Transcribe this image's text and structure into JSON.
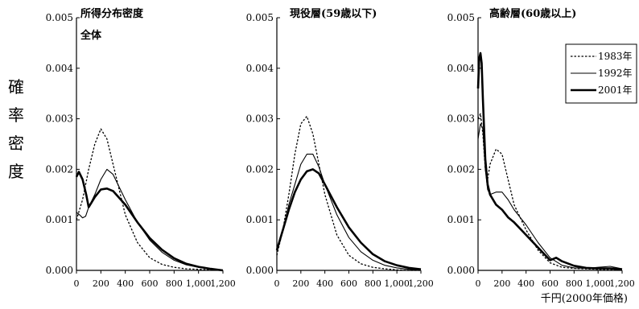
{
  "figure": {
    "y_label": "確率密度",
    "x_unit_label": "千円(2000年価格)"
  },
  "chart_data": [
    {
      "type": "line",
      "title": "所得分布密度",
      "subtitle": "全体",
      "xlim": [
        0,
        1200
      ],
      "ylim": [
        0,
        0.005
      ],
      "x_ticks": [
        "0",
        "200",
        "400",
        "600",
        "800",
        "1,000",
        "1,200"
      ],
      "y_ticks": [
        "0.000",
        "0.001",
        "0.002",
        "0.003",
        "0.004",
        "0.005"
      ],
      "grid": false,
      "series": [
        {
          "name": "1983年",
          "style": "dotted",
          "x": [
            0,
            50,
            100,
            150,
            200,
            250,
            300,
            400,
            500,
            600,
            700,
            800,
            900,
            1000,
            1100,
            1200
          ],
          "y": [
            0.001,
            0.0014,
            0.002,
            0.0025,
            0.0028,
            0.0026,
            0.0021,
            0.0011,
            0.00055,
            0.00025,
            0.00012,
            6e-05,
            3e-05,
            2e-05,
            1e-05,
            0.0
          ]
        },
        {
          "name": "1992年",
          "style": "thin",
          "x": [
            0,
            25,
            50,
            75,
            100,
            150,
            200,
            250,
            300,
            400,
            500,
            600,
            700,
            800,
            900,
            1000,
            1100,
            1200
          ],
          "y": [
            0.00115,
            0.0011,
            0.00104,
            0.00107,
            0.00125,
            0.0015,
            0.0018,
            0.002,
            0.0019,
            0.0014,
            0.00095,
            0.0006,
            0.00036,
            0.0002,
            0.00011,
            6e-05,
            3e-05,
            0.0
          ]
        },
        {
          "name": "2001年",
          "style": "thick",
          "x": [
            0,
            20,
            50,
            80,
            100,
            150,
            200,
            250,
            300,
            400,
            500,
            600,
            700,
            800,
            900,
            1000,
            1100,
            1200
          ],
          "y": [
            0.00185,
            0.00195,
            0.0018,
            0.0015,
            0.00125,
            0.00145,
            0.0016,
            0.00162,
            0.00157,
            0.0013,
            0.00095,
            0.00064,
            0.00041,
            0.00024,
            0.00013,
            7e-05,
            3e-05,
            0.0
          ]
        }
      ]
    },
    {
      "type": "line",
      "title": "現役層(59歳以下)",
      "xlim": [
        0,
        1200
      ],
      "ylim": [
        0,
        0.005
      ],
      "x_ticks": [
        "0",
        "200",
        "400",
        "600",
        "800",
        "1,000",
        "1,200"
      ],
      "y_ticks": [
        "0.000",
        "0.001",
        "0.002",
        "0.003",
        "0.004",
        "0.005"
      ],
      "grid": false,
      "series": [
        {
          "name": "1983年",
          "style": "dotted",
          "x": [
            0,
            50,
            100,
            150,
            200,
            250,
            300,
            400,
            500,
            600,
            700,
            800,
            900,
            1000,
            1100,
            1200
          ],
          "y": [
            0.0003,
            0.0008,
            0.0015,
            0.0023,
            0.0029,
            0.00305,
            0.0027,
            0.0015,
            0.0007,
            0.0003,
            0.00013,
            6e-05,
            3e-05,
            1e-05,
            0.0,
            0.0
          ]
        },
        {
          "name": "1992年",
          "style": "thin",
          "x": [
            0,
            50,
            100,
            150,
            200,
            250,
            300,
            350,
            400,
            500,
            600,
            700,
            800,
            900,
            1000,
            1100,
            1200
          ],
          "y": [
            0.0004,
            0.0008,
            0.0013,
            0.0017,
            0.0021,
            0.0023,
            0.0023,
            0.00205,
            0.0017,
            0.0011,
            0.00065,
            0.00037,
            0.0002,
            0.0001,
            5e-05,
            2e-05,
            0.0
          ]
        },
        {
          "name": "2001年",
          "style": "thick",
          "x": [
            0,
            50,
            100,
            150,
            200,
            250,
            300,
            350,
            400,
            500,
            600,
            700,
            800,
            900,
            1000,
            1100,
            1200
          ],
          "y": [
            0.0004,
            0.0008,
            0.0012,
            0.00155,
            0.0018,
            0.00196,
            0.002,
            0.00192,
            0.0017,
            0.00125,
            0.00085,
            0.00055,
            0.00032,
            0.00018,
            0.0001,
            5e-05,
            2e-05
          ]
        }
      ]
    },
    {
      "type": "line",
      "title": "高齢層(60歳以上)",
      "xlim": [
        0,
        1200
      ],
      "ylim": [
        0,
        0.005
      ],
      "x_ticks": [
        "0",
        "200",
        "400",
        "600",
        "800",
        "1,000",
        "1,200"
      ],
      "y_ticks": [
        "0.000",
        "0.001",
        "0.002",
        "0.003",
        "0.004",
        "0.005"
      ],
      "grid": false,
      "legend_position": "top-right",
      "series": [
        {
          "name": "1983年",
          "style": "dotted",
          "x": [
            0,
            20,
            40,
            60,
            80,
            100,
            150,
            200,
            250,
            300,
            400,
            500,
            600,
            700,
            800,
            900,
            1000,
            1100,
            1200
          ],
          "y": [
            0.003,
            0.0031,
            0.0027,
            0.002,
            0.0018,
            0.0021,
            0.0024,
            0.0023,
            0.0018,
            0.0013,
            0.0008,
            0.0004,
            0.00015,
            6e-05,
            4e-05,
            3e-05,
            2e-05,
            1e-05,
            0.0
          ]
        },
        {
          "name": "1992年",
          "style": "thin",
          "x": [
            0,
            20,
            40,
            60,
            80,
            100,
            150,
            200,
            250,
            300,
            400,
            500,
            600,
            700,
            800,
            900,
            1000,
            1100,
            1200
          ],
          "y": [
            0.0026,
            0.0029,
            0.0028,
            0.002,
            0.0016,
            0.0015,
            0.00155,
            0.00155,
            0.0014,
            0.0012,
            0.0009,
            0.00055,
            0.00025,
            0.0001,
            5e-05,
            4e-05,
            6e-05,
            8e-05,
            3e-05
          ]
        },
        {
          "name": "2001年",
          "style": "thick",
          "x": [
            0,
            10,
            20,
            30,
            40,
            60,
            80,
            100,
            150,
            200,
            250,
            300,
            400,
            500,
            600,
            650,
            700,
            800,
            900,
            1000,
            1100,
            1200
          ],
          "y": [
            0.0036,
            0.0042,
            0.0043,
            0.0041,
            0.0034,
            0.0022,
            0.0017,
            0.0015,
            0.0013,
            0.0012,
            0.00105,
            0.00095,
            0.0007,
            0.00045,
            0.0002,
            0.00025,
            0.00018,
            9e-05,
            5e-05,
            4e-05,
            4e-05,
            2e-05
          ]
        }
      ]
    }
  ]
}
